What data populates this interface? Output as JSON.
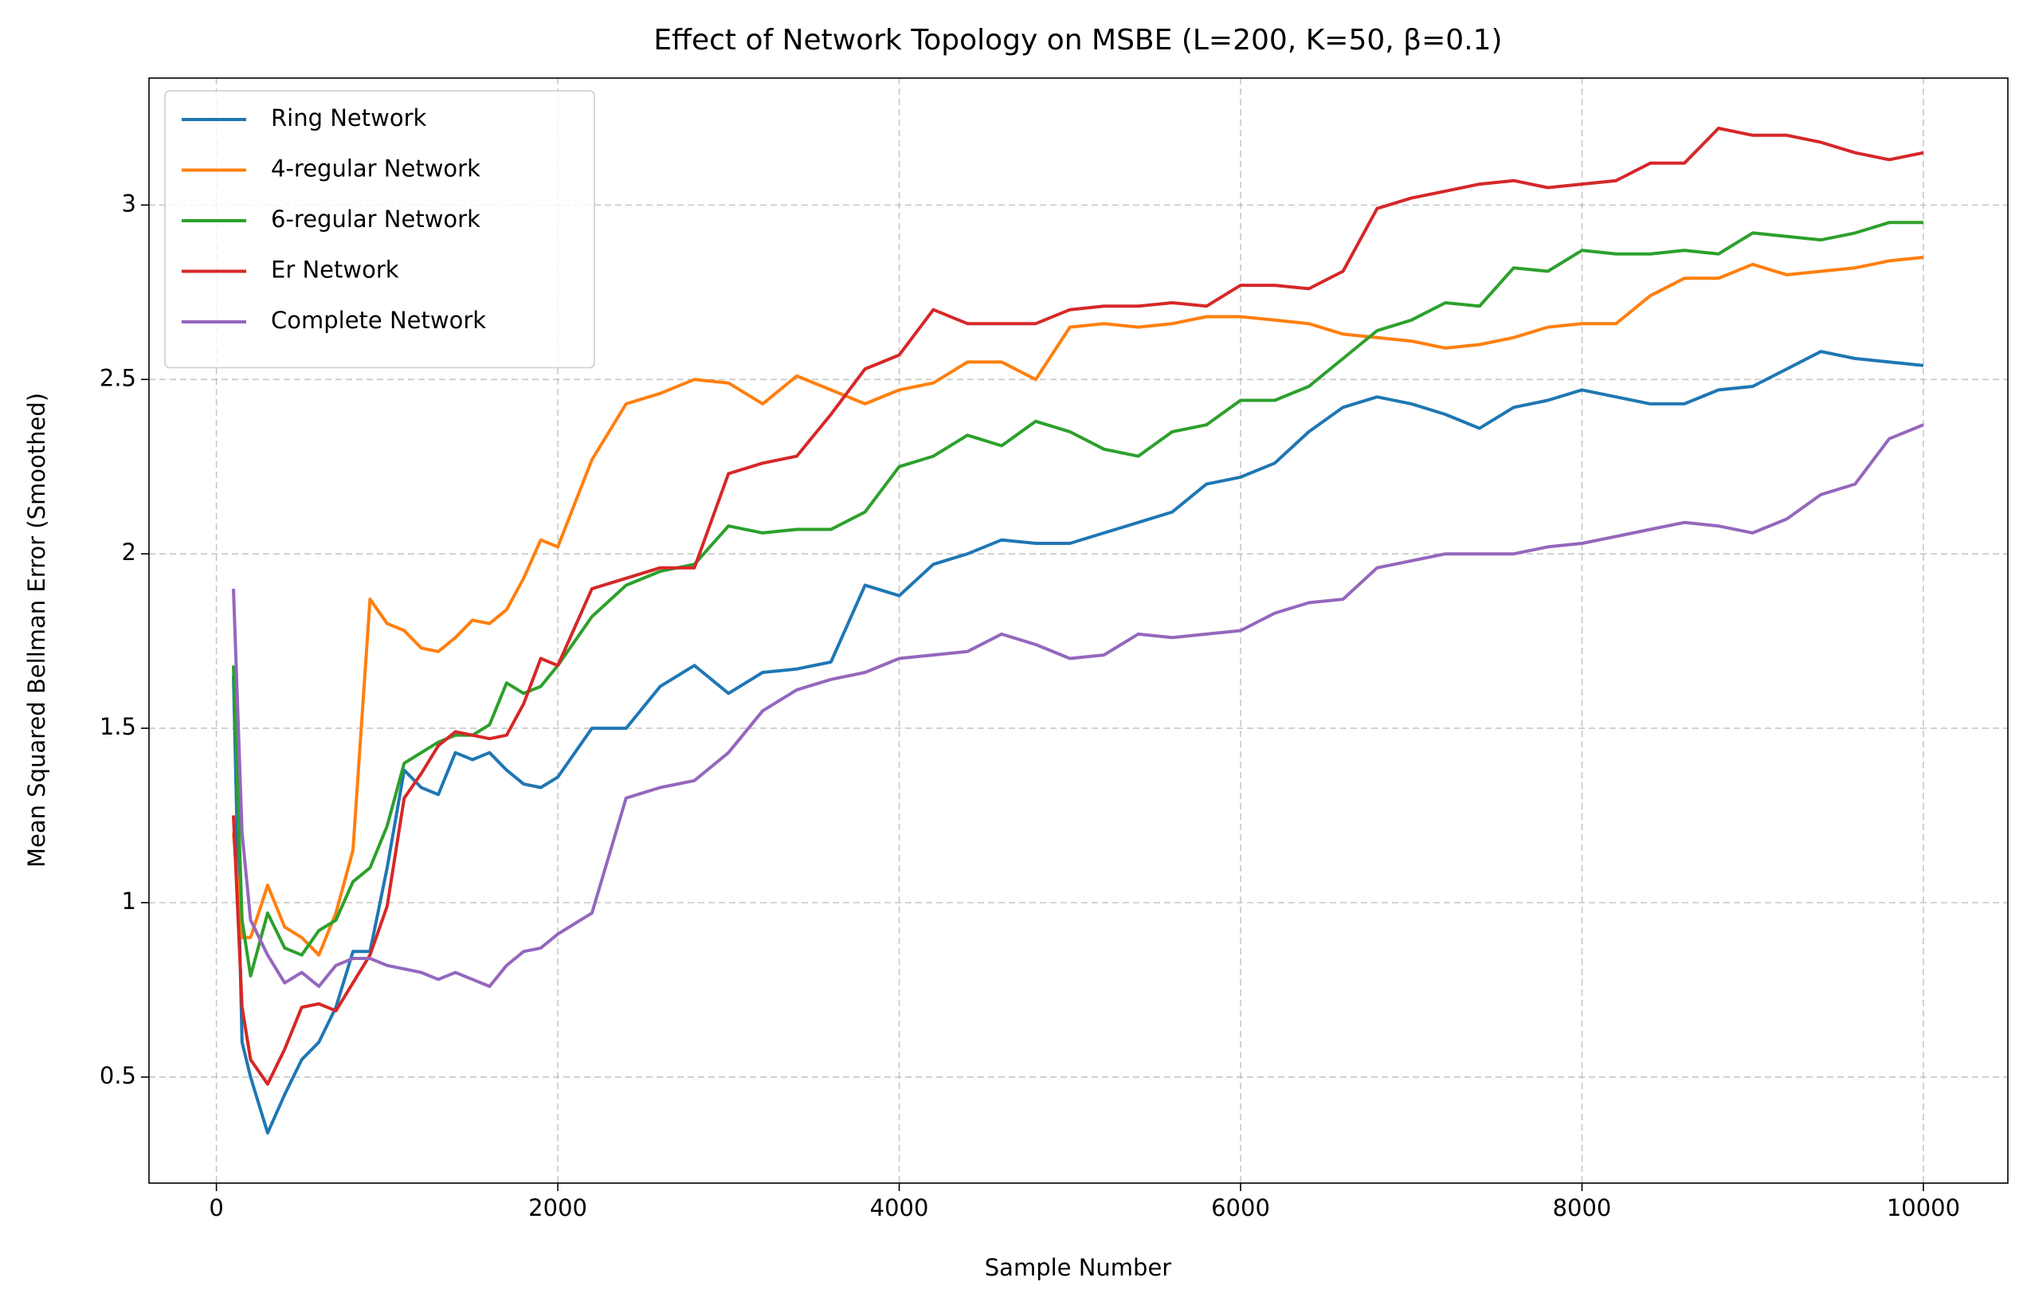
{
  "chart_data": {
    "type": "line",
    "title": "Effect of Network Topology on MSBE (L=200, K=50, β=0.1)",
    "xlabel": "Sample Number",
    "ylabel": "Mean Squared Bellman Error (Smoothed)",
    "x": [
      100,
      150,
      200,
      300,
      400,
      500,
      600,
      700,
      800,
      900,
      1000,
      1100,
      1200,
      1300,
      1400,
      1500,
      1600,
      1700,
      1800,
      1900,
      2000,
      2200,
      2400,
      2600,
      2800,
      3000,
      3200,
      3400,
      3600,
      3800,
      4000,
      4200,
      4400,
      4600,
      4800,
      5000,
      5200,
      5400,
      5600,
      5800,
      6000,
      6200,
      6400,
      6600,
      6800,
      7000,
      7200,
      7400,
      7600,
      7800,
      8000,
      8200,
      8400,
      8600,
      8800,
      9000,
      9200,
      9400,
      9600,
      9800,
      10000
    ],
    "series": [
      {
        "name": "Ring Network",
        "color": "#1f77b4",
        "values": [
          1.65,
          0.6,
          0.5,
          0.34,
          0.45,
          0.55,
          0.6,
          0.7,
          0.86,
          0.86,
          1.1,
          1.38,
          1.33,
          1.31,
          1.43,
          1.41,
          1.43,
          1.38,
          1.34,
          1.33,
          1.36,
          1.5,
          1.5,
          1.62,
          1.68,
          1.6,
          1.66,
          1.67,
          1.69,
          1.91,
          1.88,
          1.97,
          2.0,
          2.04,
          2.03,
          2.03,
          2.06,
          2.09,
          2.12,
          2.2,
          2.22,
          2.26,
          2.35,
          2.42,
          2.45,
          2.43,
          2.4,
          2.36,
          2.42,
          2.44,
          2.47,
          2.45,
          2.43,
          2.43,
          2.47,
          2.48,
          2.53,
          2.58,
          2.56,
          2.55,
          2.54
        ]
      },
      {
        "name": "4-regular Network",
        "color": "#ff7f0e",
        "values": [
          1.2,
          0.9,
          0.9,
          1.05,
          0.93,
          0.9,
          0.85,
          0.97,
          1.15,
          1.87,
          1.8,
          1.78,
          1.73,
          1.72,
          1.76,
          1.81,
          1.8,
          1.84,
          1.93,
          2.04,
          2.02,
          2.27,
          2.43,
          2.46,
          2.5,
          2.49,
          2.43,
          2.51,
          2.47,
          2.43,
          2.47,
          2.49,
          2.55,
          2.55,
          2.5,
          2.65,
          2.66,
          2.65,
          2.66,
          2.68,
          2.68,
          2.67,
          2.66,
          2.63,
          2.62,
          2.61,
          2.59,
          2.6,
          2.62,
          2.65,
          2.66,
          2.66,
          2.74,
          2.79,
          2.79,
          2.83,
          2.8,
          2.81,
          2.82,
          2.84,
          2.85
        ]
      },
      {
        "name": "6-regular Network",
        "color": "#2ca02c",
        "values": [
          1.68,
          0.95,
          0.79,
          0.97,
          0.87,
          0.85,
          0.92,
          0.95,
          1.06,
          1.1,
          1.22,
          1.4,
          1.43,
          1.46,
          1.48,
          1.48,
          1.51,
          1.63,
          1.6,
          1.62,
          1.68,
          1.82,
          1.91,
          1.95,
          1.97,
          2.08,
          2.06,
          2.07,
          2.07,
          2.12,
          2.25,
          2.28,
          2.34,
          2.31,
          2.38,
          2.35,
          2.3,
          2.28,
          2.35,
          2.37,
          2.44,
          2.44,
          2.48,
          2.56,
          2.64,
          2.67,
          2.72,
          2.71,
          2.82,
          2.81,
          2.87,
          2.86,
          2.86,
          2.87,
          2.86,
          2.92,
          2.91,
          2.9,
          2.92,
          2.95,
          2.95
        ]
      },
      {
        "name": "Er Network",
        "color": "#d62728",
        "values": [
          1.25,
          0.7,
          0.55,
          0.48,
          0.58,
          0.7,
          0.71,
          0.69,
          0.77,
          0.85,
          0.99,
          1.3,
          1.37,
          1.45,
          1.49,
          1.48,
          1.47,
          1.48,
          1.57,
          1.7,
          1.68,
          1.9,
          1.93,
          1.96,
          1.96,
          2.23,
          2.26,
          2.28,
          2.4,
          2.53,
          2.57,
          2.7,
          2.66,
          2.66,
          2.66,
          2.7,
          2.71,
          2.71,
          2.72,
          2.71,
          2.77,
          2.77,
          2.76,
          2.81,
          2.99,
          3.02,
          3.04,
          3.06,
          3.07,
          3.05,
          3.06,
          3.07,
          3.12,
          3.12,
          3.22,
          3.2,
          3.2,
          3.18,
          3.15,
          3.13,
          3.15
        ]
      },
      {
        "name": "Complete Network",
        "color": "#9467bd",
        "values": [
          1.9,
          1.2,
          0.95,
          0.85,
          0.77,
          0.8,
          0.76,
          0.82,
          0.84,
          0.84,
          0.82,
          0.81,
          0.8,
          0.78,
          0.8,
          0.78,
          0.76,
          0.82,
          0.86,
          0.87,
          0.91,
          0.97,
          1.3,
          1.33,
          1.35,
          1.43,
          1.55,
          1.61,
          1.64,
          1.66,
          1.7,
          1.71,
          1.72,
          1.77,
          1.74,
          1.7,
          1.71,
          1.77,
          1.76,
          1.77,
          1.78,
          1.83,
          1.86,
          1.87,
          1.96,
          1.98,
          2.0,
          2.0,
          2.0,
          2.02,
          2.03,
          2.05,
          2.07,
          2.09,
          2.08,
          2.06,
          2.1,
          2.17,
          2.2,
          2.33,
          2.37
        ]
      }
    ],
    "xlim": [
      -395,
      10495
    ],
    "xticks": [
      0,
      2000,
      4000,
      6000,
      8000,
      10000
    ],
    "ylim": [
      0.196,
      3.364
    ],
    "yticks": [
      0.5,
      1.0,
      1.5,
      2.0,
      2.5,
      3.0
    ],
    "grid": true,
    "legend": "upper left"
  }
}
